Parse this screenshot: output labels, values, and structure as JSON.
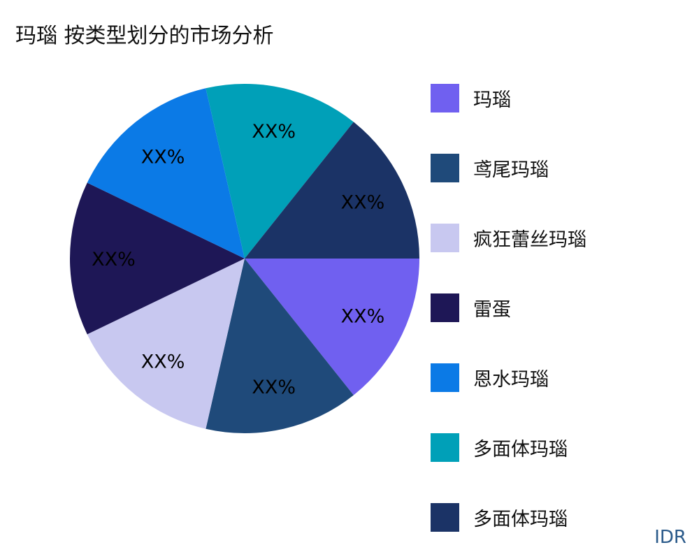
{
  "chart_data": {
    "type": "pie",
    "title": "玛瑙 按类型划分的市场分析",
    "categories": [
      "玛瑙",
      "鸢尾玛瑙",
      "疯狂蕾丝玛瑙",
      "雷蛋",
      "恩水玛瑙",
      "多面体玛瑙",
      "多面体玛瑙"
    ],
    "values": [
      1,
      1,
      1,
      1,
      1,
      1,
      1
    ],
    "data_labels": [
      "XX%",
      "XX%",
      "XX%",
      "XX%",
      "XX%",
      "XX%",
      "XX%"
    ],
    "colors": [
      "#7060f0",
      "#1f4a7a",
      "#c8c8f0",
      "#1e1756",
      "#0b7ae6",
      "#00a0b8",
      "#1b3366"
    ],
    "legend_position": "right"
  },
  "watermark": "IDR"
}
